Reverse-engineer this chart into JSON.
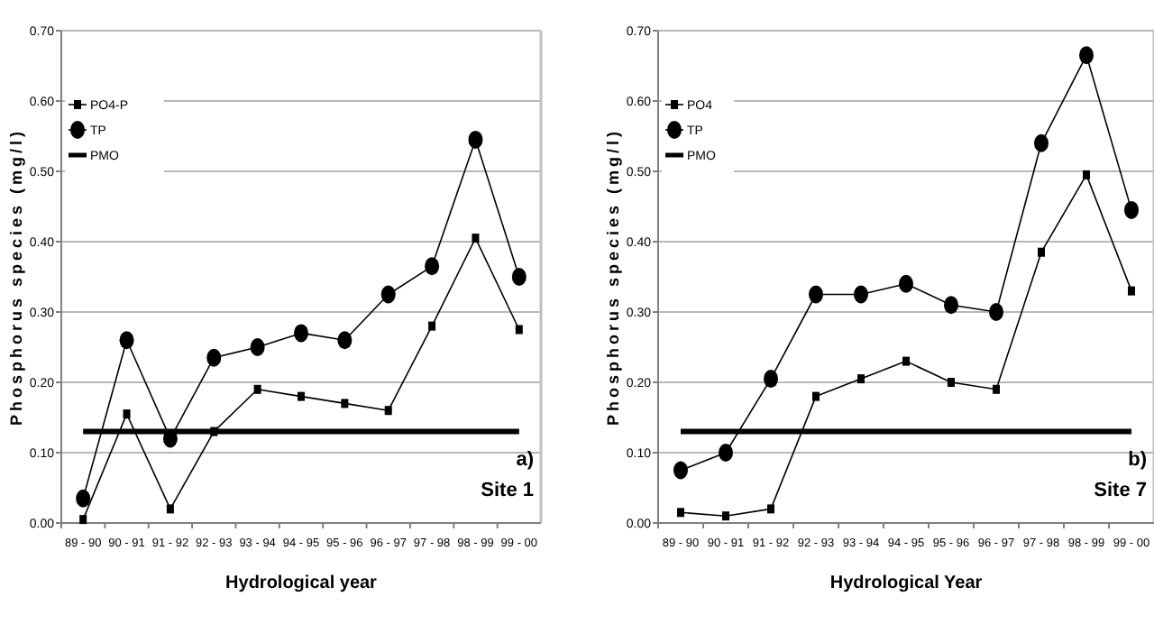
{
  "chart_data": [
    {
      "type": "line",
      "xlabel": "Hydrological year",
      "ylabel": "Phosphorus species (mg/l)",
      "categories": [
        "89 - 90",
        "90 - 91",
        "91 - 92",
        "92 - 93",
        "93 - 94",
        "94 - 95",
        "95 - 96",
        "96 - 97",
        "97 - 98",
        "98 - 99",
        "99 - 00"
      ],
      "series": [
        {
          "name": "PO4-P",
          "color": "#000000",
          "marker": "square",
          "values": [
            0.005,
            0.155,
            0.02,
            0.13,
            0.19,
            0.18,
            0.17,
            0.16,
            0.28,
            0.405,
            0.275
          ]
        },
        {
          "name": "TP",
          "color": "#000000",
          "marker": "circle",
          "values": [
            0.035,
            0.26,
            0.12,
            0.235,
            0.25,
            0.27,
            0.26,
            0.325,
            0.365,
            0.545,
            0.35
          ]
        },
        {
          "name": "PMO",
          "color": "#000000",
          "marker": "none",
          "values": [
            0.13,
            0.13,
            0.13,
            0.13,
            0.13,
            0.13,
            0.13,
            0.13,
            0.13,
            0.13,
            0.13
          ]
        }
      ],
      "ylim": [
        0,
        0.7
      ],
      "yticks": [
        {
          "value": 0,
          "label": "0.00"
        },
        {
          "value": 0.1,
          "label": "0.10"
        },
        {
          "value": 0.2,
          "label": "0.20"
        },
        {
          "value": 0.3,
          "label": "0.30"
        },
        {
          "value": 0.4,
          "label": "0.40"
        },
        {
          "value": 0.5,
          "label": "0.50"
        },
        {
          "value": 0.6,
          "label": "0.60"
        },
        {
          "value": 0.7,
          "label": "0.70"
        }
      ],
      "grid": "y",
      "legend": "top left",
      "annotations": [
        "a)",
        "Site 1"
      ]
    },
    {
      "type": "line",
      "xlabel": "Hydrological Year",
      "ylabel": "Phosphorus species (mg/l)",
      "categories": [
        "89 - 90",
        "90 - 91",
        "91 - 92",
        "92 - 93",
        "93 - 94",
        "94 - 95",
        "95 - 96",
        "96 - 97",
        "97 - 98",
        "98 - 99",
        "99 - 00"
      ],
      "series": [
        {
          "name": "PO4",
          "color": "#000000",
          "marker": "square",
          "values": [
            0.015,
            0.01,
            0.02,
            0.18,
            0.205,
            0.23,
            0.2,
            0.19,
            0.385,
            0.495,
            0.33
          ]
        },
        {
          "name": "TP",
          "color": "#000000",
          "marker": "circle",
          "values": [
            0.075,
            0.1,
            0.205,
            0.325,
            0.325,
            0.34,
            0.31,
            0.3,
            0.54,
            0.665,
            0.445
          ]
        },
        {
          "name": "PMO",
          "color": "#000000",
          "marker": "none",
          "values": [
            0.13,
            0.13,
            0.13,
            0.13,
            0.13,
            0.13,
            0.13,
            0.13,
            0.13,
            0.13,
            0.13
          ]
        }
      ],
      "ylim": [
        0,
        0.7
      ],
      "yticks": [
        {
          "value": 0,
          "label": "0.00"
        },
        {
          "value": 0.1,
          "label": "0.10"
        },
        {
          "value": 0.2,
          "label": "0.20"
        },
        {
          "value": 0.3,
          "label": "0.30"
        },
        {
          "value": 0.4,
          "label": "0.40"
        },
        {
          "value": 0.5,
          "label": "0.50"
        },
        {
          "value": 0.6,
          "label": "0.60"
        },
        {
          "value": 0.7,
          "label": "0.70"
        }
      ],
      "grid": "y",
      "legend": "top left",
      "annotations": [
        "b)",
        "Site 7"
      ]
    }
  ]
}
